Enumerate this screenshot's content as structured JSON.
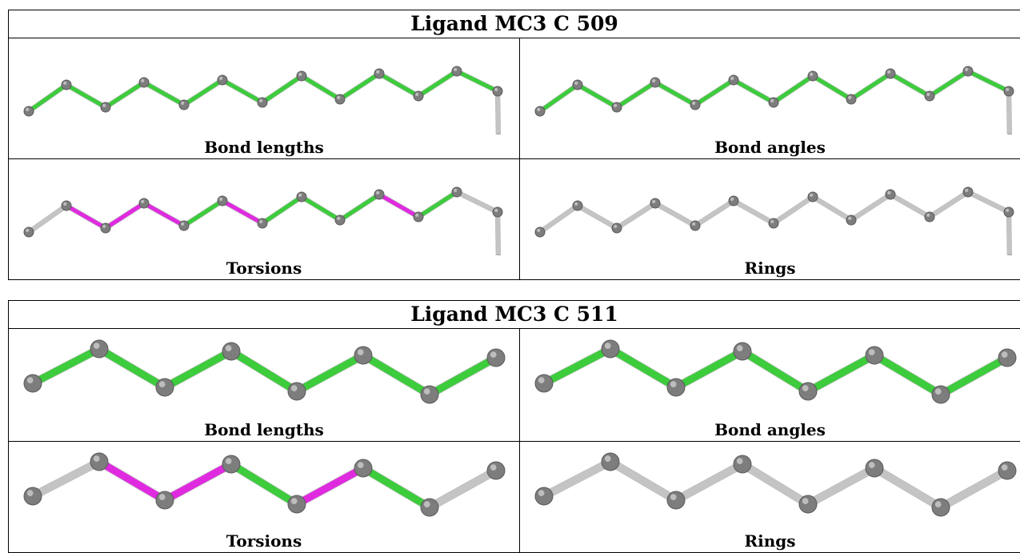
{
  "colors": {
    "atom": "#7d7d7d",
    "atom_highlight": "#bdbdbd",
    "bond_ok": "#3ccc3c",
    "bond_outlier": "#e02ae0",
    "bond_neutral": "#c4c4c4"
  },
  "ligands": [
    {
      "title": "Ligand MC3 C 509",
      "panels": [
        {
          "label": "Bond lengths",
          "bond_colors": [
            "ok",
            "ok",
            "ok",
            "ok",
            "ok",
            "ok",
            "ok",
            "ok",
            "ok",
            "ok",
            "ok",
            "ok"
          ]
        },
        {
          "label": "Bond angles",
          "bond_colors": [
            "ok",
            "ok",
            "ok",
            "ok",
            "ok",
            "ok",
            "ok",
            "ok",
            "ok",
            "ok",
            "ok",
            "ok"
          ]
        },
        {
          "label": "Torsions",
          "bond_colors": [
            "neutral",
            "outlier",
            "outlier",
            "outlier",
            "ok",
            "outlier",
            "ok",
            "ok",
            "ok",
            "outlier",
            "ok",
            "neutral"
          ]
        },
        {
          "label": "Rings",
          "bond_colors": [
            "neutral",
            "neutral",
            "neutral",
            "neutral",
            "neutral",
            "neutral",
            "neutral",
            "neutral",
            "neutral",
            "neutral",
            "neutral",
            "neutral"
          ]
        }
      ]
    },
    {
      "title": "Ligand MC3 C 511",
      "panels": [
        {
          "label": "Bond lengths",
          "bond_colors": [
            "ok",
            "ok",
            "ok",
            "ok",
            "ok",
            "ok",
            "ok"
          ]
        },
        {
          "label": "Bond angles",
          "bond_colors": [
            "ok",
            "ok",
            "ok",
            "ok",
            "ok",
            "ok",
            "ok"
          ]
        },
        {
          "label": "Torsions",
          "bond_colors": [
            "neutral",
            "outlier",
            "outlier",
            "ok",
            "outlier",
            "ok",
            "neutral"
          ]
        },
        {
          "label": "Rings",
          "bond_colors": [
            "neutral",
            "neutral",
            "neutral",
            "neutral",
            "neutral",
            "neutral",
            "neutral"
          ]
        }
      ]
    }
  ]
}
